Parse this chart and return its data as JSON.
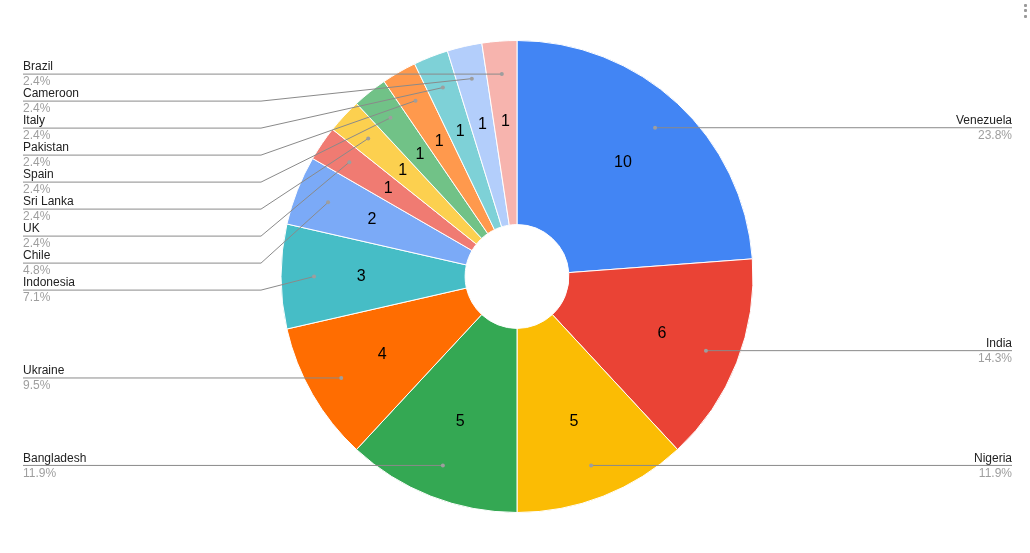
{
  "chart_data": {
    "type": "donut",
    "categories": [
      "Venezuela",
      "India",
      "Nigeria",
      "Bangladesh",
      "Ukraine",
      "Indonesia",
      "Chile",
      "UK",
      "Sri Lanka",
      "Spain",
      "Pakistan",
      "Italy",
      "Cameroon",
      "Brazil"
    ],
    "values": [
      10,
      6,
      5,
      5,
      4,
      3,
      2,
      1,
      1,
      1,
      1,
      1,
      1,
      1
    ],
    "colors": [
      "#4285f4",
      "#ea4335",
      "#fbbc04",
      "#34a853",
      "#ff6d01",
      "#46bdc6",
      "#7baaf7",
      "#f07b72",
      "#fcd04f",
      "#71c287",
      "#ff994d",
      "#7ed1d7",
      "#b3cefb",
      "#f7b4ae"
    ],
    "data_labels": true,
    "annotations": [
      "23.8%",
      "14.3%",
      "11.9%",
      "11.9%",
      "9.5%",
      "7.1%",
      "4.8%",
      "2.4%",
      "2.4%",
      "2.4%",
      "2.4%",
      "2.4%",
      "2.4%",
      "2.4%"
    ],
    "legend": false
  }
}
